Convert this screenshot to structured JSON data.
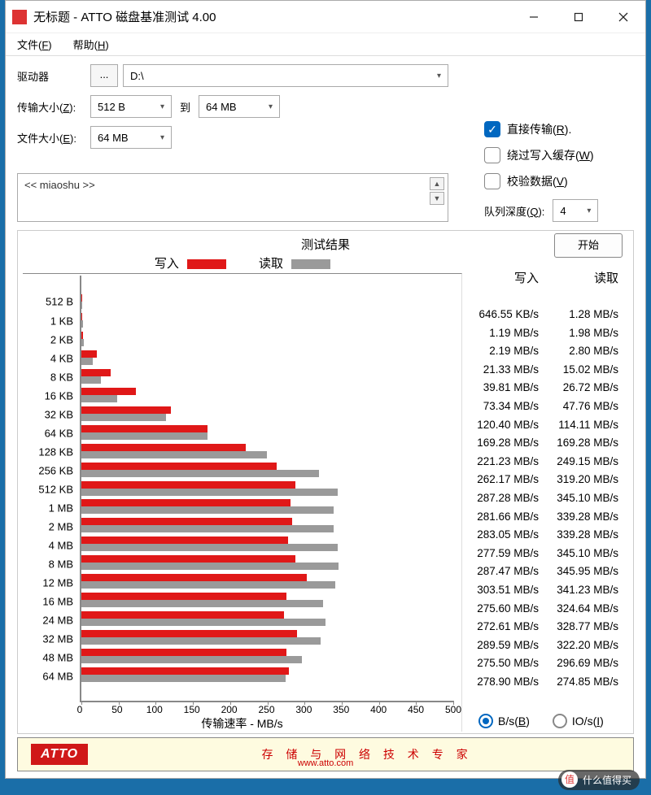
{
  "window": {
    "title": "无标题 - ATTO 磁盘基准测试 4.00"
  },
  "menu": {
    "file": "文件(",
    "file_u": "F",
    "file_end": ")",
    "help": "帮助(",
    "help_u": "H",
    "help_end": ")"
  },
  "labels": {
    "drive": "驱动器",
    "drive_val": "D:\\",
    "tsize": "传输大小(",
    "tsize_u": "Z",
    "tsize_end": "):",
    "tsize_from": "512 B",
    "tsize_to_lbl": "到",
    "tsize_to": "64 MB",
    "fsize": "文件大小(",
    "fsize_u": "E",
    "fsize_end": "):",
    "fsize_val": "64 MB",
    "direct": "直接传输(",
    "direct_u": "R",
    "direct_end": ").",
    "bypass": "绕过写入缓存(",
    "bypass_u": "W",
    "bypass_end": ")",
    "verify": "校验数据(",
    "verify_u": "V",
    "verify_end": ")",
    "qdepth": "队列深度(",
    "qdepth_u": "Q",
    "qdepth_end": "):",
    "qdepth_val": "4",
    "start": "开始",
    "desc": "<< miaoshu >>"
  },
  "results": {
    "title": "测试结果",
    "legend_write": "写入",
    "legend_read": "读取",
    "write_color": "#e01818",
    "read_color": "#9a9a9a",
    "xlabel": "传输速率 - MB/s",
    "xmax": 500,
    "xticks": [
      0,
      50,
      100,
      150,
      200,
      250,
      300,
      350,
      400,
      450,
      500
    ],
    "col_write": "写入",
    "col_read": "读取",
    "radio_bs": "B/s(",
    "radio_bs_u": "B",
    "radio_bs_end": ")",
    "radio_ios": "IO/s(",
    "radio_ios_u": "I",
    "radio_ios_end": ")",
    "rows": [
      {
        "label": "512 B",
        "write_mb": 0.63,
        "read_mb": 1.28,
        "write_txt": "646.55 KB/s",
        "read_txt": "1.28 MB/s"
      },
      {
        "label": "1 KB",
        "write_mb": 1.19,
        "read_mb": 1.98,
        "write_txt": "1.19 MB/s",
        "read_txt": "1.98 MB/s"
      },
      {
        "label": "2 KB",
        "write_mb": 2.19,
        "read_mb": 2.8,
        "write_txt": "2.19 MB/s",
        "read_txt": "2.80 MB/s"
      },
      {
        "label": "4 KB",
        "write_mb": 21.33,
        "read_mb": 15.02,
        "write_txt": "21.33 MB/s",
        "read_txt": "15.02 MB/s"
      },
      {
        "label": "8 KB",
        "write_mb": 39.81,
        "read_mb": 26.72,
        "write_txt": "39.81 MB/s",
        "read_txt": "26.72 MB/s"
      },
      {
        "label": "16 KB",
        "write_mb": 73.34,
        "read_mb": 47.76,
        "write_txt": "73.34 MB/s",
        "read_txt": "47.76 MB/s"
      },
      {
        "label": "32 KB",
        "write_mb": 120.4,
        "read_mb": 114.11,
        "write_txt": "120.40 MB/s",
        "read_txt": "114.11 MB/s"
      },
      {
        "label": "64 KB",
        "write_mb": 169.28,
        "read_mb": 169.28,
        "write_txt": "169.28 MB/s",
        "read_txt": "169.28 MB/s"
      },
      {
        "label": "128 KB",
        "write_mb": 221.23,
        "read_mb": 249.15,
        "write_txt": "221.23 MB/s",
        "read_txt": "249.15 MB/s"
      },
      {
        "label": "256 KB",
        "write_mb": 262.17,
        "read_mb": 319.2,
        "write_txt": "262.17 MB/s",
        "read_txt": "319.20 MB/s"
      },
      {
        "label": "512 KB",
        "write_mb": 287.28,
        "read_mb": 345.1,
        "write_txt": "287.28 MB/s",
        "read_txt": "345.10 MB/s"
      },
      {
        "label": "1 MB",
        "write_mb": 281.66,
        "read_mb": 339.28,
        "write_txt": "281.66 MB/s",
        "read_txt": "339.28 MB/s"
      },
      {
        "label": "2 MB",
        "write_mb": 283.05,
        "read_mb": 339.28,
        "write_txt": "283.05 MB/s",
        "read_txt": "339.28 MB/s"
      },
      {
        "label": "4 MB",
        "write_mb": 277.59,
        "read_mb": 345.1,
        "write_txt": "277.59 MB/s",
        "read_txt": "345.10 MB/s"
      },
      {
        "label": "8 MB",
        "write_mb": 287.47,
        "read_mb": 345.95,
        "write_txt": "287.47 MB/s",
        "read_txt": "345.95 MB/s"
      },
      {
        "label": "12 MB",
        "write_mb": 303.51,
        "read_mb": 341.23,
        "write_txt": "303.51 MB/s",
        "read_txt": "341.23 MB/s"
      },
      {
        "label": "16 MB",
        "write_mb": 275.6,
        "read_mb": 324.64,
        "write_txt": "275.60 MB/s",
        "read_txt": "324.64 MB/s"
      },
      {
        "label": "24 MB",
        "write_mb": 272.61,
        "read_mb": 328.77,
        "write_txt": "272.61 MB/s",
        "read_txt": "328.77 MB/s"
      },
      {
        "label": "32 MB",
        "write_mb": 289.59,
        "read_mb": 322.2,
        "write_txt": "289.59 MB/s",
        "read_txt": "322.20 MB/s"
      },
      {
        "label": "48 MB",
        "write_mb": 275.5,
        "read_mb": 296.69,
        "write_txt": "275.50 MB/s",
        "read_txt": "296.69 MB/s"
      },
      {
        "label": "64 MB",
        "write_mb": 278.9,
        "read_mb": 274.85,
        "write_txt": "278.90 MB/s",
        "read_txt": "274.85 MB/s"
      }
    ]
  },
  "banner": {
    "logo": "ATTO",
    "text": "存 储 与 网 络 技 术 专 家",
    "url": "www.atto.com"
  },
  "watermark": "什么值得买"
}
